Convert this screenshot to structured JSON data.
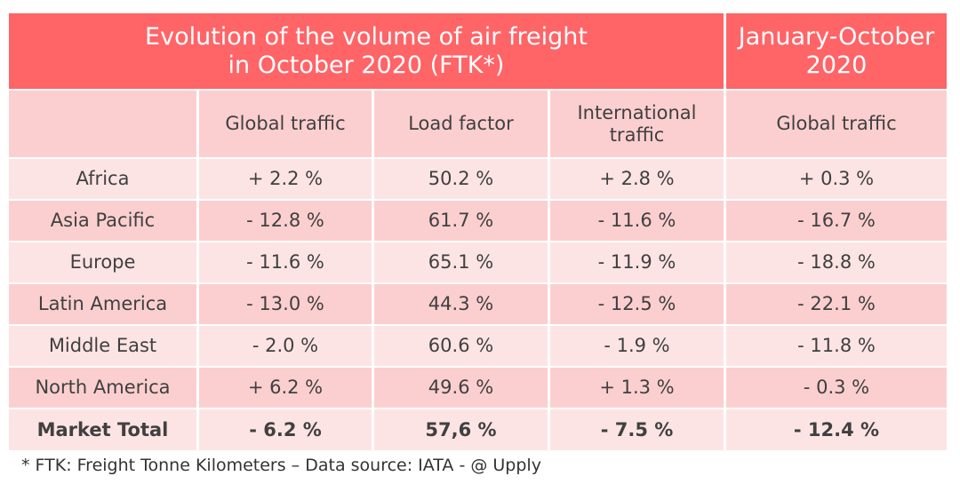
{
  "header": {
    "main_title_line1": "Evolution of the volume of air freight",
    "main_title_line2": "in October 2020 (FTK*)",
    "side_title_line1": "January-October",
    "side_title_line2": "2020"
  },
  "columns": {
    "region": "",
    "global_traffic": "Global traffic",
    "load_factor": "Load factor",
    "international_line1": "International",
    "international_line2": "traffic",
    "ytd_global_traffic": "Global traffic"
  },
  "rows": [
    {
      "region": "Africa",
      "global": "+ 2.2 %",
      "load": "50.2 %",
      "intl": "+ 2.8 %",
      "ytd": "+ 0.3 %"
    },
    {
      "region": "Asia Pacific",
      "global": "- 12.8 %",
      "load": "61.7 %",
      "intl": "- 11.6 %",
      "ytd": "- 16.7 %"
    },
    {
      "region": "Europe",
      "global": "- 11.6 %",
      "load": "65.1 %",
      "intl": "- 11.9 %",
      "ytd": "- 18.8 %"
    },
    {
      "region": "Latin America",
      "global": "- 13.0 %",
      "load": "44.3 %",
      "intl": "- 12.5 %",
      "ytd": "- 22.1 %"
    },
    {
      "region": "Middle East",
      "global": "- 2.0 %",
      "load": "60.6 %",
      "intl": "- 1.9 %",
      "ytd": "- 11.8 %"
    },
    {
      "region": "North America",
      "global": "+ 6.2 %",
      "load": "49.6 %",
      "intl": "+ 1.3 %",
      "ytd": "- 0.3 %"
    },
    {
      "region": "Market Total",
      "global": "- 6.2 %",
      "load": "57,6 %",
      "intl": "- 7.5 %",
      "ytd": "- 12.4 %"
    }
  ],
  "footnote": "* FTK: Freight Tonne Kilometers – Data source: IATA - @ Upply",
  "colors": {
    "header": "#ff6467",
    "row_light": "#fde4e4",
    "row_dark": "#fbcfd0"
  }
}
